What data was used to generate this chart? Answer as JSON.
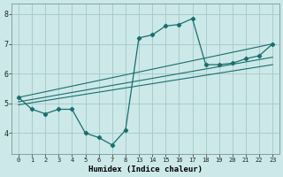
{
  "xlabel": "Humidex (Indice chaleur)",
  "bg_color": "#cce8e8",
  "grid_color": "#aacccc",
  "line_color": "#1a6e6e",
  "xtick_labels": [
    "0",
    "1",
    "2",
    "3",
    "4",
    "5",
    "6",
    "7",
    "8",
    "13",
    "14",
    "15",
    "16",
    "17",
    "18",
    "19",
    "20",
    "21",
    "22",
    "23"
  ],
  "ylim": [
    3.3,
    8.35
  ],
  "yticks": [
    4,
    5,
    6,
    7,
    8
  ],
  "series": [
    {
      "xi": [
        0,
        1,
        2,
        3,
        4,
        5,
        6,
        7,
        8,
        9,
        10,
        11,
        12,
        13,
        14,
        15,
        16,
        17,
        18,
        19
      ],
      "y": [
        5.2,
        4.8,
        4.65,
        4.8,
        4.8,
        4.0,
        3.85,
        3.6,
        4.1,
        7.2,
        7.3,
        7.6,
        7.65,
        7.85,
        6.3,
        6.3,
        6.35,
        6.5,
        6.6,
        7.0
      ],
      "marker": true
    },
    {
      "xi": [
        0,
        19
      ],
      "y": [
        5.2,
        7.0
      ],
      "marker": false
    },
    {
      "xi": [
        0,
        19
      ],
      "y": [
        5.05,
        6.55
      ],
      "marker": false
    },
    {
      "xi": [
        0,
        19
      ],
      "y": [
        4.95,
        6.3
      ],
      "marker": false
    }
  ]
}
